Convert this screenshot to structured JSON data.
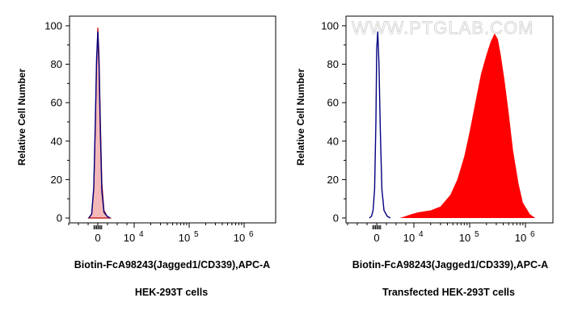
{
  "watermark": "WWW.PTGLAB.COM",
  "colors": {
    "control_fill": "#f5b8b8",
    "control_line": "#c00000",
    "sample_fill": "#ff0000",
    "isotype_line": "#000080"
  },
  "chart_data": [
    {
      "type": "area",
      "caption": "HEK-293T cells",
      "xlabel": "Biotin-FcA98243(Jagged1/CD339),APC-A",
      "ylabel": "Relative Cell Number",
      "xscale": "biexponential",
      "x_ticks": [
        {
          "value": 0,
          "base": "0",
          "exp": ""
        },
        {
          "value": 10000,
          "base": "10",
          "exp": "4"
        },
        {
          "value": 100000,
          "base": "10",
          "exp": "5"
        },
        {
          "value": 1000000,
          "base": "10",
          "exp": "6"
        }
      ],
      "y_ticks": [
        0,
        20,
        40,
        60,
        80,
        100
      ],
      "ylim": [
        0,
        105
      ],
      "grid": false,
      "series": [
        {
          "role": "sample",
          "style": "filled",
          "color": "#f5b8b8",
          "stroke": "#c00000",
          "x": [
            -900,
            -600,
            -400,
            -250,
            -120,
            0,
            120,
            250,
            400,
            600,
            900,
            1200
          ],
          "y": [
            0,
            2,
            15,
            45,
            80,
            99,
            85,
            50,
            18,
            4,
            1,
            0
          ]
        },
        {
          "role": "isotype",
          "style": "line",
          "color": "#000080",
          "x": [
            -900,
            -600,
            -400,
            -250,
            -120,
            0,
            120,
            250,
            400,
            600,
            900,
            1200
          ],
          "y": [
            0,
            2,
            16,
            48,
            83,
            97,
            80,
            44,
            14,
            3,
            1,
            0
          ]
        }
      ]
    },
    {
      "type": "area",
      "caption": "Transfected HEK-293T cells",
      "xlabel": "Biotin-FcA98243(Jagged1/CD339),APC-A",
      "ylabel": "Relative Cell Number",
      "xscale": "biexponential",
      "x_ticks": [
        {
          "value": 0,
          "base": "0",
          "exp": ""
        },
        {
          "value": 10000,
          "base": "10",
          "exp": "4"
        },
        {
          "value": 100000,
          "base": "10",
          "exp": "5"
        },
        {
          "value": 1000000,
          "base": "10",
          "exp": "6"
        }
      ],
      "y_ticks": [
        0,
        20,
        40,
        60,
        80,
        100
      ],
      "ylim": [
        0,
        105
      ],
      "grid": false,
      "series": [
        {
          "role": "sample",
          "style": "filled",
          "color": "#ff0000",
          "x": [
            3000,
            5000,
            8000,
            12000,
            20000,
            30000,
            45000,
            60000,
            80000,
            100000,
            130000,
            160000,
            200000,
            240000,
            280000,
            320000,
            360000,
            420000,
            500000,
            600000,
            750000,
            900000,
            1200000,
            1500000
          ],
          "y": [
            0,
            1,
            2,
            3,
            4,
            6,
            12,
            20,
            32,
            45,
            62,
            75,
            85,
            92,
            96,
            93,
            85,
            72,
            55,
            35,
            18,
            8,
            2,
            0
          ]
        },
        {
          "role": "isotype",
          "style": "line",
          "color": "#000080",
          "x": [
            -700,
            -500,
            -350,
            -200,
            -80,
            0,
            100,
            220,
            350,
            500,
            700,
            1000,
            1300
          ],
          "y": [
            0,
            1,
            4,
            15,
            50,
            88,
            97,
            80,
            45,
            15,
            4,
            1,
            0
          ]
        }
      ]
    }
  ]
}
